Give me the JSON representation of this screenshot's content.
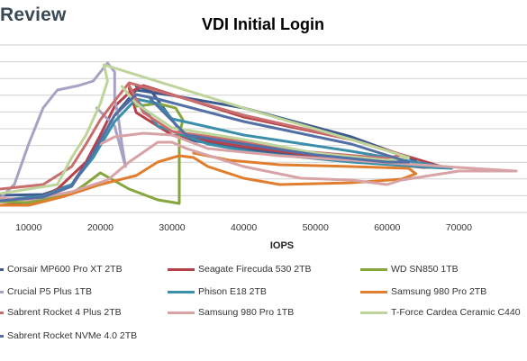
{
  "brand": "Review",
  "chart_data": {
    "type": "line",
    "title": "VDI Initial Login",
    "xlabel": "IOPS",
    "ylabel": "",
    "xlim": [
      6000,
      79500
    ],
    "x_ticks": [
      10000,
      20000,
      30000,
      40000,
      50000,
      60000,
      70000
    ],
    "x_tick_labels": [
      "10000",
      "20000",
      "30000",
      "40000",
      "50000",
      "60000",
      "70000"
    ],
    "y_grid_lines": 10,
    "grid": "horizontal",
    "legend_position": "bottom",
    "series": [
      {
        "name": "Corsair MP600 Pro XT 2TB",
        "color": "#3d5b8f",
        "points": [
          [
            6000,
            217
          ],
          [
            12000,
            216
          ],
          [
            16000,
            205
          ],
          [
            19000,
            170
          ],
          [
            22000,
            128
          ],
          [
            25000,
            100
          ],
          [
            30000,
            106
          ],
          [
            40000,
            120
          ],
          [
            55000,
            152
          ],
          [
            64000,
            178
          ],
          [
            62000,
            181
          ],
          [
            50000,
            175
          ],
          [
            40000,
            165
          ],
          [
            32000,
            155
          ],
          [
            27000,
            100
          ],
          [
            25000,
            96
          ]
        ]
      },
      {
        "name": "Seagate Firecuda 530 2TB",
        "color": "#b5414a",
        "points": [
          [
            6000,
            228
          ],
          [
            10000,
            226
          ],
          [
            14000,
            210
          ],
          [
            18000,
            180
          ],
          [
            20000,
            150
          ],
          [
            22000,
            118
          ],
          [
            24000,
            103
          ],
          [
            26000,
            95
          ],
          [
            40000,
            130
          ],
          [
            55000,
            155
          ],
          [
            68000,
            186
          ],
          [
            65000,
            186
          ],
          [
            55000,
            178
          ],
          [
            40000,
            163
          ],
          [
            30000,
            150
          ],
          [
            25000,
            125
          ],
          [
            24000,
            98
          ]
        ]
      },
      {
        "name": "WD SN850 1TB",
        "color": "#86a63d",
        "points": [
          [
            6000,
            224
          ],
          [
            10000,
            225
          ],
          [
            16000,
            215
          ],
          [
            18000,
            204
          ],
          [
            20000,
            192
          ],
          [
            24000,
            210
          ],
          [
            28000,
            222
          ],
          [
            31000,
            226
          ],
          [
            31000,
            150
          ],
          [
            31500,
            133
          ],
          [
            30500,
            120
          ],
          [
            28000,
            115
          ],
          [
            25000,
            118
          ]
        ]
      },
      {
        "name": "Crucial P5 Plus 1TB",
        "color": "#a8a1c5",
        "points": [
          [
            6000,
            220
          ],
          [
            8000,
            205
          ],
          [
            10000,
            160
          ],
          [
            12000,
            120
          ],
          [
            14000,
            100
          ],
          [
            17000,
            95
          ],
          [
            19000,
            90
          ],
          [
            20000,
            80
          ],
          [
            21000,
            70
          ],
          [
            22000,
            80
          ],
          [
            22000,
            110
          ],
          [
            22500,
            130
          ],
          [
            23000,
            160
          ],
          [
            23500,
            185
          ],
          [
            22000,
            140
          ],
          [
            19500,
            120
          ]
        ]
      },
      {
        "name": "Phison E18 2TB",
        "color": "#3b8fab",
        "points": [
          [
            6000,
            222
          ],
          [
            12000,
            218
          ],
          [
            16000,
            205
          ],
          [
            19000,
            175
          ],
          [
            22000,
            135
          ],
          [
            25000,
            110
          ],
          [
            28000,
            115
          ],
          [
            30000,
            132
          ],
          [
            40000,
            150
          ],
          [
            55000,
            168
          ],
          [
            69000,
            187
          ],
          [
            66000,
            186
          ],
          [
            55000,
            180
          ],
          [
            42000,
            170
          ],
          [
            35000,
            160
          ],
          [
            28000,
            140
          ],
          [
            25000,
            110
          ]
        ]
      },
      {
        "name": "Samsung 980 Pro 2TB",
        "color": "#e07e2e",
        "points": [
          [
            6000,
            228
          ],
          [
            10000,
            228
          ],
          [
            15000,
            218
          ],
          [
            20000,
            205
          ],
          [
            25000,
            195
          ],
          [
            28000,
            180
          ],
          [
            31000,
            173
          ],
          [
            33000,
            175
          ],
          [
            35000,
            185
          ],
          [
            40000,
            198
          ],
          [
            45000,
            205
          ],
          [
            55000,
            203
          ],
          [
            62000,
            199
          ],
          [
            64000,
            193
          ],
          [
            63000,
            187
          ],
          [
            55000,
            185
          ],
          [
            45000,
            183
          ],
          [
            38000,
            178
          ],
          [
            33000,
            170
          ]
        ]
      },
      {
        "name": "Sabrent Rocket 4 Plus 2TB",
        "color": "#c96d6d",
        "points": [
          [
            6000,
            210
          ],
          [
            12000,
            205
          ],
          [
            16000,
            185
          ],
          [
            18000,
            160
          ],
          [
            20000,
            133
          ],
          [
            22000,
            112
          ],
          [
            24000,
            92
          ],
          [
            40000,
            128
          ],
          [
            55000,
            155
          ],
          [
            62000,
            172
          ],
          [
            60000,
            176
          ],
          [
            48000,
            168
          ],
          [
            38000,
            155
          ],
          [
            30000,
            146
          ],
          [
            26000,
            125
          ],
          [
            24000,
            95
          ]
        ]
      },
      {
        "name": "Samsung 980 Pro 1TB",
        "color": "#d7a3a6",
        "points": [
          [
            6000,
            220
          ],
          [
            10000,
            222
          ],
          [
            16000,
            213
          ],
          [
            21000,
            200
          ],
          [
            24000,
            180
          ],
          [
            28000,
            158
          ],
          [
            30000,
            158
          ],
          [
            32000,
            165
          ],
          [
            40000,
            185
          ],
          [
            48000,
            198
          ],
          [
            55000,
            200
          ],
          [
            60000,
            205
          ],
          [
            62000,
            200
          ],
          [
            70000,
            190
          ],
          [
            78000,
            190
          ],
          [
            70000,
            186
          ],
          [
            55000,
            178
          ],
          [
            45000,
            173
          ],
          [
            35000,
            165
          ],
          [
            30000,
            150
          ],
          [
            26000,
            148
          ],
          [
            22000,
            152
          ],
          [
            20000,
            160
          ]
        ]
      },
      {
        "name": "T-Force Cardea Ceramic C440",
        "color": "#bfd49a",
        "points": [
          [
            6000,
            215
          ],
          [
            10000,
            210
          ],
          [
            14000,
            205
          ],
          [
            16000,
            175
          ],
          [
            18000,
            150
          ],
          [
            20000,
            115
          ],
          [
            21000,
            90
          ],
          [
            20500,
            72
          ],
          [
            40000,
            120
          ],
          [
            55000,
            155
          ],
          [
            63000,
            175
          ],
          [
            60000,
            178
          ],
          [
            50000,
            170
          ],
          [
            40000,
            155
          ],
          [
            30000,
            142
          ],
          [
            25000,
            115
          ],
          [
            23000,
            96
          ]
        ]
      },
      {
        "name": "Sabrent Rocket NVMe 4.0 2TB",
        "color": "#5270a5",
        "points": [
          [
            6000,
            223
          ],
          [
            12000,
            219
          ],
          [
            16000,
            207
          ],
          [
            19000,
            170
          ],
          [
            22000,
            128
          ],
          [
            25000,
            105
          ],
          [
            28000,
            110
          ],
          [
            40000,
            135
          ],
          [
            55000,
            160
          ],
          [
            63000,
            180
          ],
          [
            60000,
            180
          ],
          [
            50000,
            172
          ],
          [
            40000,
            160
          ],
          [
            32000,
            150
          ],
          [
            27000,
            110
          ]
        ]
      }
    ]
  }
}
